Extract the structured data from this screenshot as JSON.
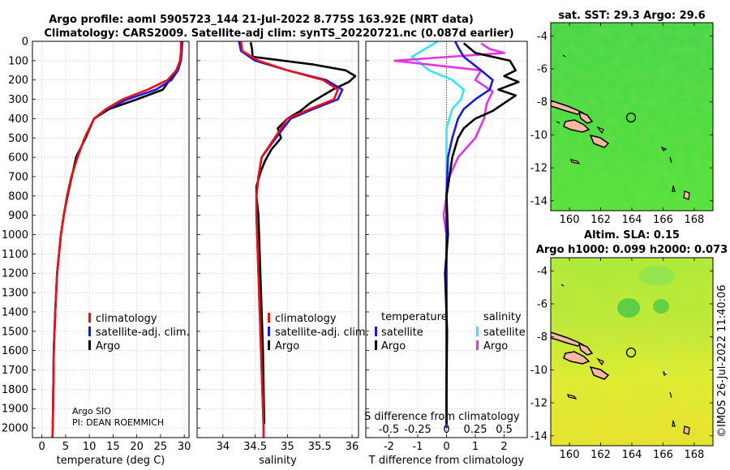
{
  "figure": {
    "title_line1": "Argo profile: aoml 5905723_144 21-Jul-2022 8.775S 163.92E (NRT data)",
    "title_line2": "Climatology: CARS2009. Satellite-adj clim: synTS_20220721.nc (0.087d earlier)",
    "credit": "©IMOS 26-Jul-2022 11:40:06",
    "argo_institution": "Argo SIO",
    "argo_pi": "PI: DEAN ROEMMICH"
  },
  "colors": {
    "climatology": "#ee1111",
    "satellite": "#1a1ae6",
    "argo": "#000000",
    "sat_salinity": "#33e6ee",
    "argo_salinity": "#e633e6"
  },
  "chart_data": [
    {
      "type": "line",
      "title": "",
      "xlabel": "temperature (deg C)",
      "ylabel": "",
      "xlim": [
        -2,
        31
      ],
      "ylim": [
        2050,
        0
      ],
      "xticks": [
        0,
        5,
        10,
        15,
        20,
        25,
        30
      ],
      "yticks": [
        0,
        100,
        200,
        300,
        400,
        500,
        600,
        700,
        800,
        900,
        1000,
        1100,
        1200,
        1300,
        1400,
        1500,
        1600,
        1700,
        1800,
        1900,
        2000
      ],
      "legend": [
        "climatology",
        "satellite-adj. clim.",
        "Argo"
      ],
      "legend_position": "lower-right",
      "series": [
        {
          "name": "climatology",
          "x": [
            29.3,
            29.3,
            29.1,
            28.3,
            26.5,
            22.3,
            17.0,
            13.5,
            11.0,
            9.0,
            7.5,
            6.2,
            5.3,
            4.6,
            4.0,
            3.2,
            2.8,
            2.5,
            2.4,
            2.3,
            2.2
          ],
          "y": [
            0,
            50,
            100,
            150,
            200,
            250,
            300,
            350,
            400,
            500,
            600,
            700,
            800,
            900,
            1000,
            1200,
            1400,
            1600,
            1800,
            2000,
            2050
          ]
        },
        {
          "name": "satellite-adj. clim.",
          "x": [
            29.6,
            29.5,
            29.3,
            28.7,
            27.3,
            24.0,
            18.0,
            13.8,
            11.0,
            9.0,
            7.5,
            6.2,
            5.3,
            4.6,
            4.0,
            3.2,
            2.8,
            2.5,
            2.4,
            2.3,
            2.2
          ],
          "y": [
            0,
            50,
            100,
            150,
            200,
            250,
            300,
            350,
            400,
            500,
            600,
            700,
            800,
            900,
            1000,
            1200,
            1400,
            1600,
            1800,
            2000,
            2050
          ]
        },
        {
          "name": "Argo",
          "x": [
            29.5,
            29.4,
            29.2,
            28.6,
            27.5,
            25.5,
            20.0,
            14.2,
            11.0,
            9.2,
            7.2,
            6.3,
            5.4,
            4.6,
            4.0,
            3.2,
            2.8,
            2.5,
            2.4,
            2.3
          ],
          "y": [
            5,
            50,
            100,
            150,
            180,
            250,
            300,
            350,
            400,
            500,
            600,
            700,
            800,
            900,
            1000,
            1200,
            1400,
            1600,
            1800,
            1980
          ]
        }
      ]
    },
    {
      "type": "line",
      "title": "",
      "xlabel": "salinity",
      "ylabel": "",
      "xlim": [
        33.6,
        36.1
      ],
      "ylim": [
        2050,
        0
      ],
      "xticks": [
        34,
        34.5,
        35,
        35.5,
        36
      ],
      "yticks": [
        0,
        100,
        200,
        300,
        400,
        500,
        600,
        700,
        800,
        900,
        1000,
        1100,
        1200,
        1300,
        1400,
        1500,
        1600,
        1700,
        1800,
        1900,
        2000
      ],
      "legend": [
        "climatology",
        "satellite-adj. clim.",
        "Argo"
      ],
      "legend_position": "lower-right",
      "series": [
        {
          "name": "climatology",
          "x": [
            34.28,
            34.3,
            34.55,
            35.0,
            35.55,
            35.78,
            35.72,
            35.35,
            35.0,
            34.8,
            34.6,
            34.55,
            34.52,
            34.52,
            34.53,
            34.55,
            34.57,
            34.59,
            34.61,
            34.63,
            34.63
          ],
          "y": [
            0,
            50,
            100,
            150,
            200,
            250,
            300,
            350,
            400,
            500,
            600,
            700,
            800,
            900,
            1000,
            1200,
            1400,
            1600,
            1800,
            2000,
            2050
          ]
        },
        {
          "name": "satellite-adj. clim.",
          "x": [
            34.25,
            34.28,
            34.5,
            35.0,
            35.6,
            35.85,
            35.78,
            35.4,
            35.05,
            34.82,
            34.6,
            34.55,
            34.52,
            34.52,
            34.53,
            34.55,
            34.57,
            34.59,
            34.61,
            34.63,
            34.63
          ],
          "y": [
            0,
            50,
            100,
            150,
            200,
            250,
            300,
            350,
            400,
            500,
            600,
            700,
            800,
            900,
            1000,
            1200,
            1400,
            1600,
            1800,
            2000,
            2050
          ]
        },
        {
          "name": "Argo",
          "x": [
            34.43,
            34.45,
            34.46,
            35.4,
            35.9,
            36.05,
            35.95,
            35.7,
            35.55,
            35.35,
            35.2,
            35.0,
            34.85,
            34.9,
            34.75,
            34.65,
            34.58,
            34.52,
            34.52,
            34.55,
            34.56,
            34.58,
            34.6,
            34.62,
            34.63,
            34.64
          ],
          "y": [
            5,
            40,
            80,
            120,
            150,
            180,
            210,
            250,
            280,
            320,
            360,
            400,
            450,
            500,
            560,
            620,
            680,
            750,
            800,
            900,
            1000,
            1200,
            1400,
            1600,
            1800,
            1980
          ]
        }
      ]
    },
    {
      "type": "line",
      "title": "",
      "xlabel": "T difference from climatology",
      "ylabel": "",
      "xlim": [
        -2.8,
        2.8
      ],
      "ylim": [
        2050,
        0
      ],
      "xticks": [
        -2,
        -1,
        0,
        1,
        2
      ],
      "xticks_top_label": "S difference from climatology",
      "xticks_top": [
        "-0.5",
        "-0.25",
        "0",
        "0.25",
        "0.5"
      ],
      "xticks_top_values": [
        -2,
        -1,
        0,
        1,
        2
      ],
      "yticks": [
        0,
        100,
        200,
        300,
        400,
        500,
        600,
        700,
        800,
        900,
        1000,
        1100,
        1200,
        1300,
        1400,
        1500,
        1600,
        1700,
        1800,
        1900,
        2000
      ],
      "legend_temperature": [
        "temperature",
        "satellite",
        "Argo"
      ],
      "legend_salinity": [
        "salinity",
        "satellite",
        "Argo"
      ],
      "series": [
        {
          "name": "temperature satellite",
          "x": [
            0.3,
            0.4,
            0.6,
            1.2,
            1.6,
            1.5,
            1.0,
            0.6,
            0.4,
            0.2,
            0.05,
            0.0,
            0.0,
            0.0,
            0.0,
            0.0,
            0.0
          ],
          "y": [
            0,
            30,
            80,
            150,
            200,
            250,
            300,
            350,
            400,
            500,
            600,
            800,
            1000,
            1200,
            1500,
            1800,
            2000
          ]
        },
        {
          "name": "temperature Argo",
          "x": [
            0.6,
            1.0,
            2.2,
            2.4,
            2.0,
            2.5,
            1.8,
            2.4,
            2.0,
            1.6,
            1.0,
            0.6,
            0.4,
            0.2,
            0.1,
            0.0,
            0.05,
            -0.05,
            0.02,
            0.0,
            0.0
          ],
          "y": [
            10,
            60,
            100,
            150,
            180,
            210,
            250,
            280,
            320,
            360,
            400,
            450,
            500,
            600,
            700,
            800,
            1000,
            1200,
            1500,
            1800,
            1980
          ]
        },
        {
          "name": "salinity satellite",
          "x": [
            -0.3,
            -1.2,
            -0.6,
            0.2,
            0.6,
            0.5,
            0.2,
            0.0,
            0.0,
            0.0,
            0.0,
            0.0
          ],
          "y": [
            0,
            80,
            150,
            200,
            250,
            300,
            350,
            450,
            600,
            900,
            1400,
            2000
          ]
        },
        {
          "name": "salinity Argo",
          "x": [
            1.2,
            1.5,
            2.0,
            -1.8,
            1.2,
            1.0,
            1.6,
            1.4,
            1.3,
            1.0,
            0.4,
            0.1,
            0.0,
            -0.1,
            0.0,
            0.0,
            0.0,
            0.0
          ],
          "y": [
            10,
            40,
            60,
            100,
            150,
            200,
            260,
            320,
            400,
            500,
            600,
            700,
            800,
            900,
            1000,
            1200,
            1500,
            1980
          ]
        }
      ]
    },
    {
      "type": "heatmap",
      "title": "sat. SST: 29.3 Argo: 29.6",
      "xlabel": "",
      "ylabel": "",
      "xlim": [
        158.8,
        169.2
      ],
      "ylim": [
        -14.6,
        -3.2
      ],
      "xticks": [
        160,
        162,
        164,
        166,
        168
      ],
      "yticks": [
        -4,
        -6,
        -8,
        -10,
        -12,
        -14
      ],
      "argo_position": {
        "lon": 163.92,
        "lat": -8.775
      }
    },
    {
      "type": "heatmap",
      "title": "Altim. SLA: 0.15",
      "subtitle": "Argo h1000: 0.099 h2000: 0.073",
      "xlabel": "",
      "ylabel": "",
      "xlim": [
        158.8,
        169.2
      ],
      "ylim": [
        -14.6,
        -3.2
      ],
      "xticks": [
        160,
        162,
        164,
        166,
        168
      ],
      "yticks": [
        -4,
        -6,
        -8,
        -10,
        -12,
        -14
      ],
      "argo_position": {
        "lon": 163.92,
        "lat": -8.775
      }
    }
  ]
}
